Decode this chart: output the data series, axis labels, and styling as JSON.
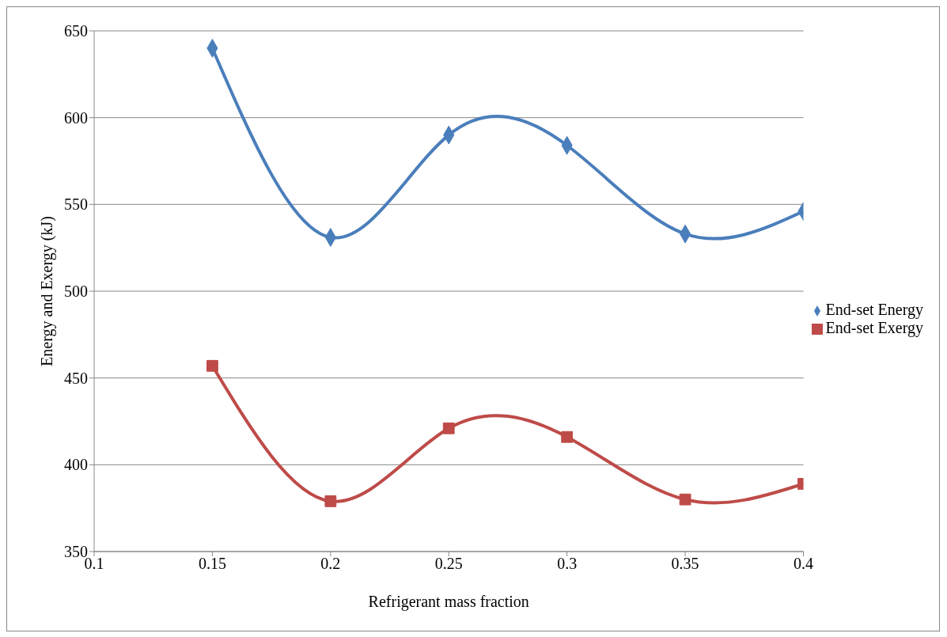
{
  "chart_data": {
    "type": "line",
    "xlabel": "Refrigerant mass fraction",
    "ylabel": "Energy and Exergy (kJ)",
    "x": [
      0.15,
      0.2,
      0.25,
      0.3,
      0.35,
      0.4
    ],
    "series": [
      {
        "name": "End-set Energy",
        "color": "#4a7ebb",
        "marker": "diamond",
        "values": [
          640,
          531,
          590,
          584,
          533,
          546
        ]
      },
      {
        "name": "End-set Exergy",
        "color": "#be4b48",
        "marker": "square",
        "values": [
          457,
          379,
          421,
          416,
          380,
          389
        ]
      }
    ],
    "xlim": [
      0.1,
      0.4
    ],
    "xticks": [
      0.1,
      0.15,
      0.2,
      0.25,
      0.3,
      0.35,
      0.4
    ],
    "ylim": [
      350,
      650
    ],
    "yticks": [
      350,
      400,
      450,
      500,
      550,
      600,
      650
    ],
    "grid": "y",
    "legend": "right",
    "line_style": "solid"
  }
}
